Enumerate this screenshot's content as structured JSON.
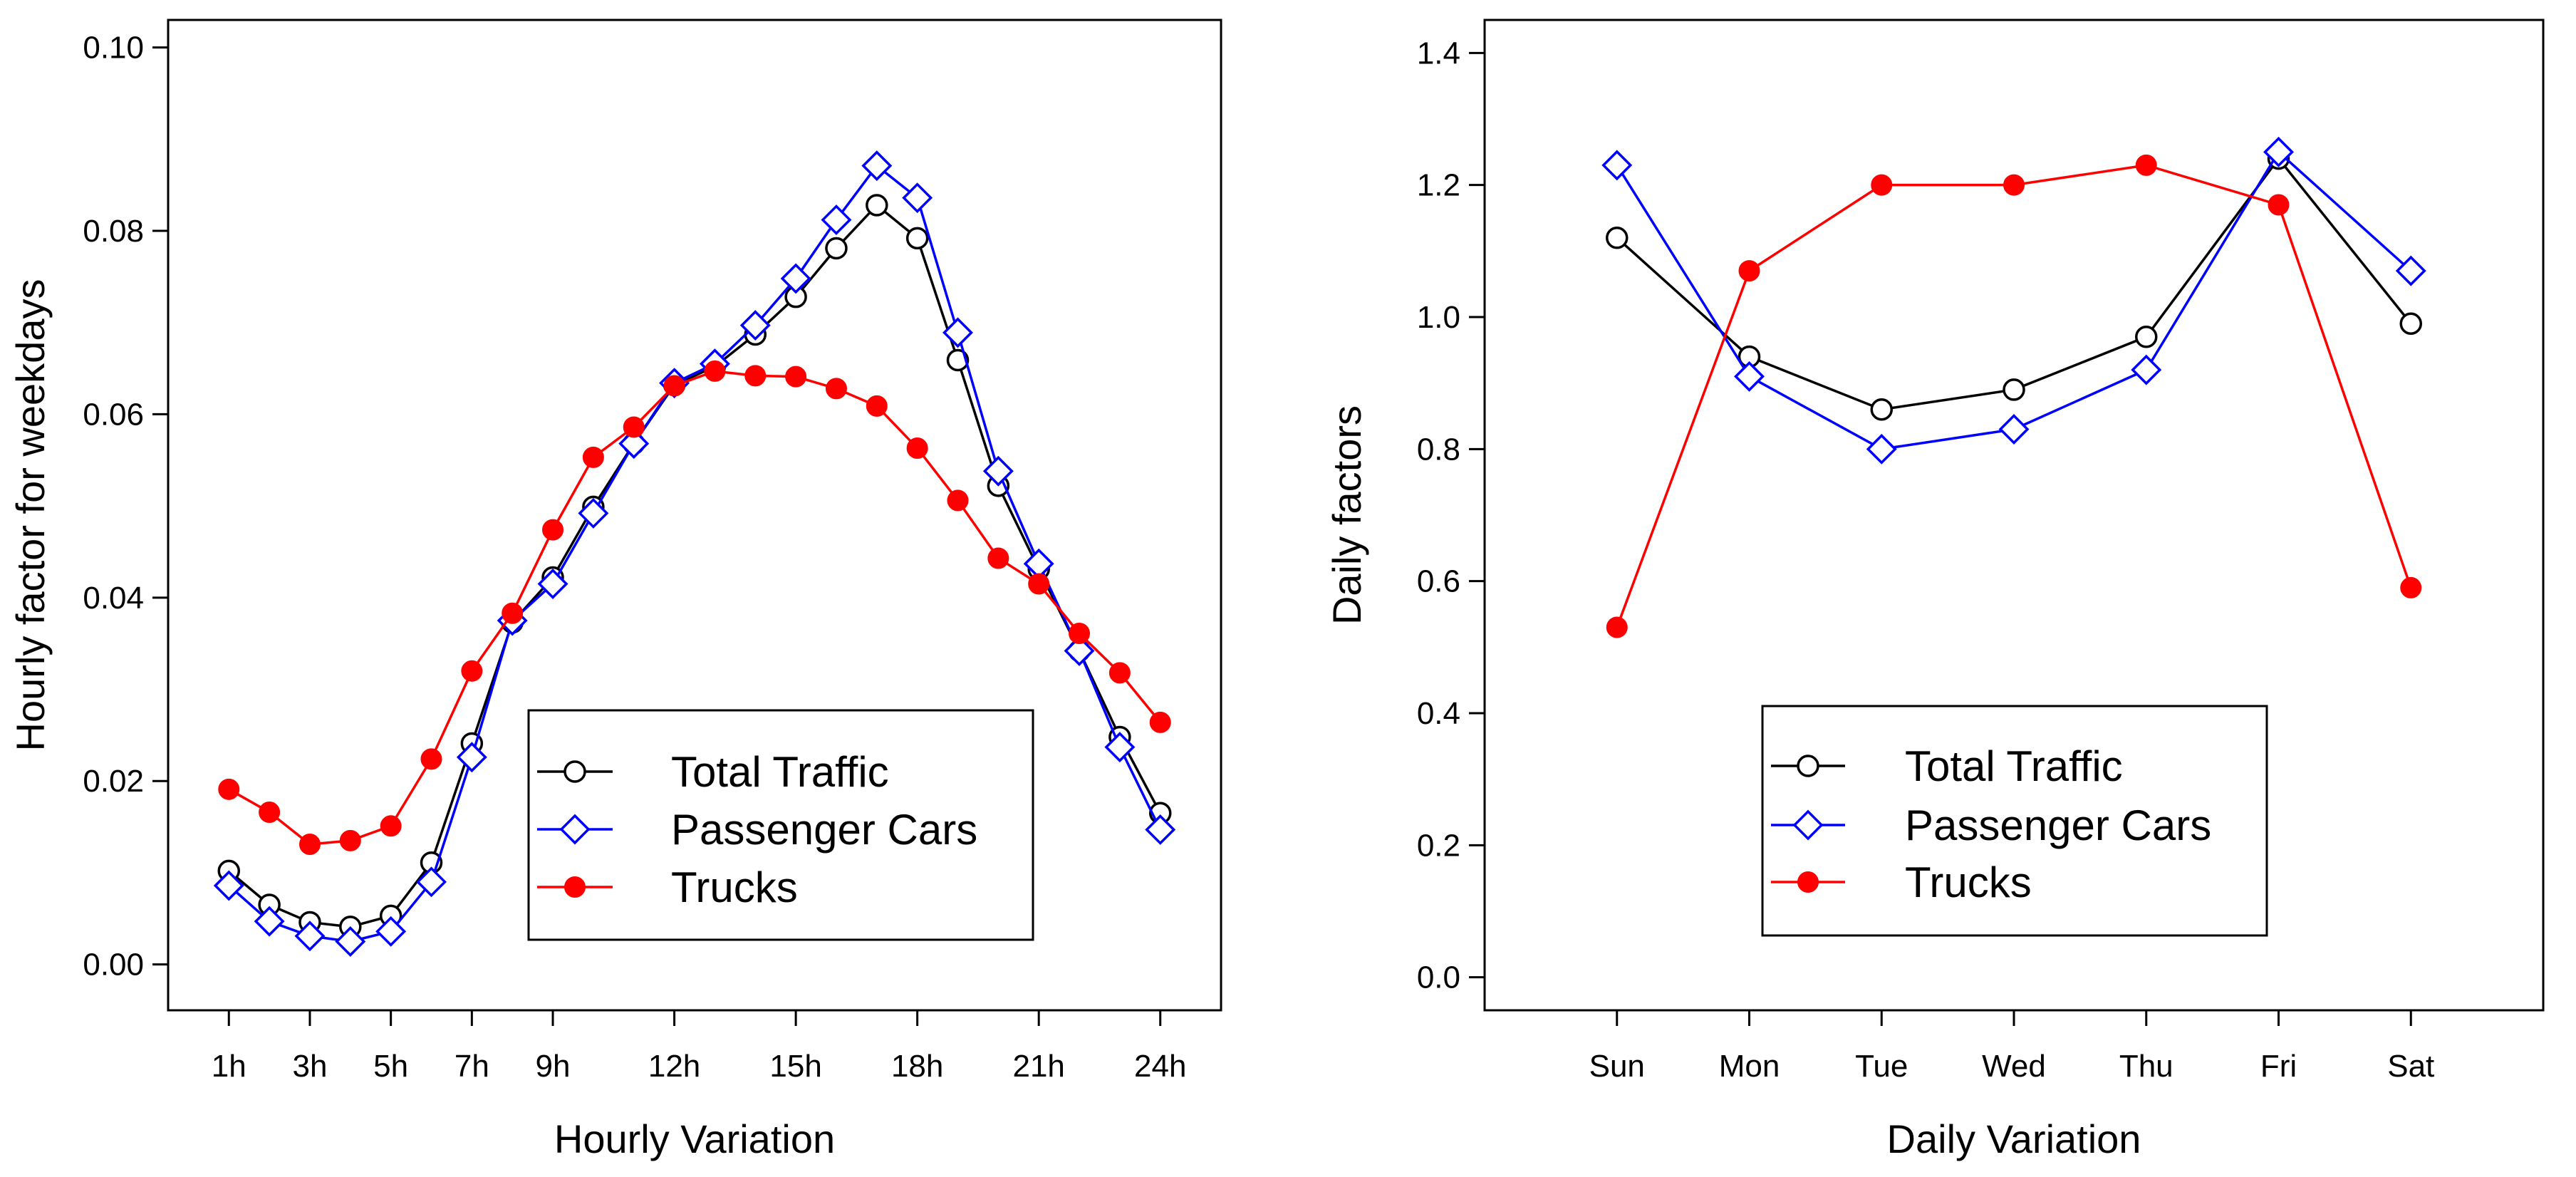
{
  "chart_data": [
    {
      "type": "line",
      "title": "",
      "xlabel": "Hourly Variation",
      "ylabel": "Hourly factor for weekdays",
      "x": [
        1,
        2,
        3,
        4,
        5,
        6,
        7,
        8,
        9,
        10,
        11,
        12,
        13,
        14,
        15,
        16,
        17,
        18,
        19,
        20,
        21,
        22,
        23,
        24
      ],
      "xticks": [
        1,
        3,
        5,
        7,
        9,
        12,
        15,
        18,
        21,
        24
      ],
      "xtick_labels": [
        "1h",
        "3h",
        "5h",
        "7h",
        "9h",
        "12h",
        "15h",
        "18h",
        "21h",
        "24h"
      ],
      "xlim": [
        -0.5,
        25.5
      ],
      "ylim": [
        -0.005,
        0.103
      ],
      "yticks": [
        0.0,
        0.02,
        0.04,
        0.06,
        0.08,
        0.1
      ],
      "ytick_labels": [
        "0.00",
        "0.02",
        "0.04",
        "0.06",
        "0.08",
        "0.10"
      ],
      "legend_position": "lower-right",
      "series": [
        {
          "name": "Total Traffic",
          "color": "#000000",
          "marker": "circle-open",
          "values": [
            0.0102,
            0.0065,
            0.0046,
            0.0041,
            0.0053,
            0.0111,
            0.0241,
            0.0373,
            0.0422,
            0.0499,
            0.0568,
            0.0632,
            0.0652,
            0.0687,
            0.0728,
            0.0781,
            0.0828,
            0.0792,
            0.0659,
            0.0522,
            0.0431,
            0.0342,
            0.0248,
            0.0165
          ]
        },
        {
          "name": "Passenger Cars",
          "color": "#0000ff",
          "marker": "diamond-open",
          "values": [
            0.0086,
            0.0047,
            0.0031,
            0.0025,
            0.0036,
            0.009,
            0.0226,
            0.0375,
            0.0415,
            0.0492,
            0.0568,
            0.0634,
            0.0655,
            0.0697,
            0.0748,
            0.0812,
            0.0871,
            0.0836,
            0.0689,
            0.0538,
            0.0437,
            0.0342,
            0.0237,
            0.0147
          ]
        },
        {
          "name": "Trucks",
          "color": "#ff0000",
          "marker": "circle-filled",
          "values": [
            0.0191,
            0.0166,
            0.0131,
            0.0135,
            0.0151,
            0.0224,
            0.032,
            0.0383,
            0.0474,
            0.0553,
            0.0586,
            0.0631,
            0.0647,
            0.0642,
            0.0641,
            0.0628,
            0.0609,
            0.0563,
            0.0506,
            0.0443,
            0.0415,
            0.0361,
            0.0318,
            0.0264
          ]
        }
      ]
    },
    {
      "type": "line",
      "title": "",
      "xlabel": "Daily Variation",
      "ylabel": "Daily factors",
      "categories": [
        "Sun",
        "Mon",
        "Tue",
        "Wed",
        "Thu",
        "Fri",
        "Sat"
      ],
      "ylim": [
        -0.05,
        1.45
      ],
      "yticks": [
        0.0,
        0.2,
        0.4,
        0.6,
        0.8,
        1.0,
        1.2,
        1.4
      ],
      "ytick_labels": [
        "0.0",
        "0.2",
        "0.4",
        "0.6",
        "0.8",
        "1.0",
        "1.2",
        "1.4"
      ],
      "legend_position": "lower-center",
      "series": [
        {
          "name": "Total Traffic",
          "color": "#000000",
          "marker": "circle-open",
          "values": [
            1.12,
            0.94,
            0.86,
            0.89,
            0.97,
            1.24,
            0.99
          ]
        },
        {
          "name": "Passenger Cars",
          "color": "#0000ff",
          "marker": "diamond-open",
          "values": [
            1.23,
            0.91,
            0.8,
            0.83,
            0.92,
            1.25,
            1.07
          ]
        },
        {
          "name": "Trucks",
          "color": "#ff0000",
          "marker": "circle-filled",
          "values": [
            0.53,
            1.07,
            1.2,
            1.2,
            1.23,
            1.17,
            0.59
          ]
        }
      ]
    }
  ]
}
